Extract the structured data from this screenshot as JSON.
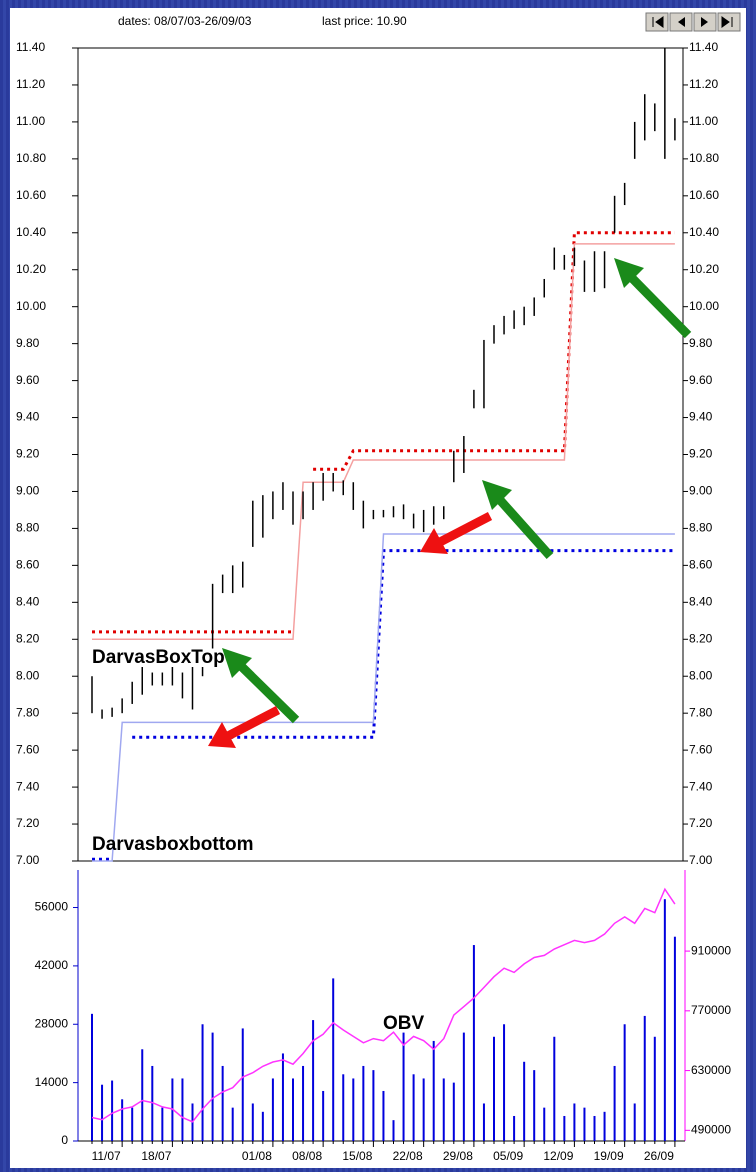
{
  "header": {
    "dates": "dates: 08/07/03-26/09/03",
    "last_price": "last price: 10.90"
  },
  "chart_data": [
    {
      "type": "ohlc",
      "ylim": [
        7.0,
        11.4
      ],
      "yticks": [
        {
          "value": 7.0,
          "label": "7.00"
        },
        {
          "value": 7.2,
          "label": "7.20"
        },
        {
          "value": 7.4,
          "label": "7.40"
        },
        {
          "value": 7.6,
          "label": "7.60"
        },
        {
          "value": 7.8,
          "label": "7.80"
        },
        {
          "value": 8.0,
          "label": "8.00"
        },
        {
          "value": 8.2,
          "label": "8.20"
        },
        {
          "value": 8.4,
          "label": "8.40"
        },
        {
          "value": 8.6,
          "label": "8.60"
        },
        {
          "value": 8.8,
          "label": "8.80"
        },
        {
          "value": 9.0,
          "label": "9.00"
        },
        {
          "value": 9.2,
          "label": "9.20"
        },
        {
          "value": 9.4,
          "label": "9.40"
        },
        {
          "value": 9.6,
          "label": "9.60"
        },
        {
          "value": 9.8,
          "label": "9.80"
        },
        {
          "value": 10.0,
          "label": "10.00"
        },
        {
          "value": 10.2,
          "label": "10.20"
        },
        {
          "value": 10.4,
          "label": "10.40"
        },
        {
          "value": 10.6,
          "label": "10.60"
        },
        {
          "value": 10.8,
          "label": "10.80"
        },
        {
          "value": 11.0,
          "label": "11.00"
        },
        {
          "value": 11.2,
          "label": "11.20"
        },
        {
          "value": 11.4,
          "label": "11.40"
        }
      ],
      "bar_color": "#000000",
      "high": [
        8.0,
        7.82,
        7.83,
        7.88,
        7.97,
        8.05,
        8.02,
        8.02,
        8.05,
        8.02,
        8.05,
        8.05,
        8.5,
        8.55,
        8.6,
        8.62,
        8.95,
        8.98,
        9.0,
        9.05,
        9.0,
        9.0,
        9.05,
        9.1,
        9.1,
        9.06,
        9.05,
        8.95,
        8.9,
        8.9,
        8.92,
        8.93,
        8.88,
        8.9,
        8.92,
        8.92,
        9.22,
        9.3,
        9.55,
        9.82,
        9.9,
        9.95,
        9.98,
        10.0,
        10.05,
        10.15,
        10.32,
        10.28,
        10.32,
        10.25,
        10.3,
        10.3,
        10.6,
        10.67,
        11.0,
        11.15,
        11.1,
        11.4,
        11.02
      ],
      "low": [
        7.8,
        7.77,
        7.78,
        7.8,
        7.85,
        7.9,
        7.95,
        7.95,
        7.95,
        7.88,
        7.82,
        8.0,
        8.15,
        8.45,
        8.45,
        8.48,
        8.7,
        8.75,
        8.85,
        8.9,
        8.82,
        8.85,
        8.9,
        8.95,
        9.0,
        8.98,
        8.9,
        8.8,
        8.85,
        8.86,
        8.86,
        8.85,
        8.8,
        8.78,
        8.82,
        8.85,
        9.05,
        9.1,
        9.45,
        9.45,
        9.8,
        9.85,
        9.88,
        9.9,
        9.95,
        10.05,
        10.2,
        10.2,
        10.22,
        10.08,
        10.08,
        10.1,
        10.4,
        10.55,
        10.8,
        10.9,
        10.95,
        10.8,
        10.9
      ],
      "series": [
        {
          "name": "DarvasBoxTop",
          "color": "#f4a0a0",
          "values": [
            8.2,
            8.2,
            8.2,
            8.2,
            8.2,
            8.2,
            8.2,
            8.2,
            8.2,
            8.2,
            8.2,
            8.2,
            8.2,
            8.2,
            8.2,
            8.2,
            8.2,
            8.2,
            8.2,
            8.2,
            8.2,
            9.05,
            9.05,
            9.05,
            9.05,
            9.05,
            9.17,
            9.17,
            9.17,
            9.17,
            9.17,
            9.17,
            9.17,
            9.17,
            9.17,
            9.17,
            9.17,
            9.17,
            9.17,
            9.17,
            9.17,
            9.17,
            9.17,
            9.17,
            9.17,
            9.17,
            9.17,
            9.17,
            10.34,
            10.34,
            10.34,
            10.34,
            10.34,
            10.34,
            10.34,
            10.34,
            10.34,
            10.34,
            10.34
          ]
        },
        {
          "name": "Darvasboxbottom",
          "color": "#a0a8f0",
          "values": [
            7.0,
            7.0,
            7.0,
            7.75,
            7.75,
            7.75,
            7.75,
            7.75,
            7.75,
            7.75,
            7.75,
            7.75,
            7.75,
            7.75,
            7.75,
            7.75,
            7.75,
            7.75,
            7.75,
            7.75,
            7.75,
            7.75,
            7.75,
            7.75,
            7.75,
            7.75,
            7.75,
            7.75,
            7.75,
            8.77,
            8.77,
            8.77,
            8.77,
            8.77,
            8.77,
            8.77,
            8.77,
            8.77,
            8.77,
            8.77,
            8.77,
            8.77,
            8.77,
            8.77,
            8.77,
            8.77,
            8.77,
            8.77,
            8.77,
            8.77,
            8.77,
            8.77,
            8.77,
            8.77,
            8.77,
            8.77,
            8.77,
            8.77,
            8.77
          ]
        }
      ],
      "dotted": [
        {
          "color": "#e00000",
          "values": [
            8.24,
            8.24,
            8.24,
            8.24,
            8.24,
            8.24,
            8.24,
            8.24,
            8.24,
            8.24,
            8.24,
            8.24,
            8.24,
            8.24,
            8.24,
            8.24,
            8.24,
            8.24,
            8.24,
            8.24,
            8.24,
            null,
            9.12,
            9.12,
            9.12,
            9.12,
            9.22,
            9.22,
            9.22,
            9.22,
            9.22,
            9.22,
            9.22,
            9.22,
            9.22,
            9.22,
            9.22,
            9.22,
            9.22,
            9.22,
            9.22,
            9.22,
            9.22,
            9.22,
            9.22,
            9.22,
            9.22,
            9.22,
            10.4,
            10.4,
            10.4,
            10.4,
            10.4,
            10.4,
            10.4,
            10.4,
            10.4,
            10.4,
            10.4
          ]
        },
        {
          "color": "#0000e0",
          "values": [
            7.01,
            7.01,
            7.01,
            null,
            7.67,
            7.67,
            7.67,
            7.67,
            7.67,
            7.67,
            7.67,
            7.67,
            7.67,
            7.67,
            7.67,
            7.67,
            7.67,
            7.67,
            7.67,
            7.67,
            7.67,
            7.67,
            7.67,
            7.67,
            7.67,
            7.67,
            7.67,
            7.67,
            7.67,
            8.68,
            8.68,
            8.68,
            8.68,
            8.68,
            8.68,
            8.68,
            8.68,
            8.68,
            8.68,
            8.68,
            8.68,
            8.68,
            8.68,
            8.68,
            8.68,
            8.68,
            8.68,
            8.68,
            8.68,
            8.68,
            8.68,
            8.68,
            8.68,
            8.68,
            8.68,
            8.68,
            8.68,
            8.68,
            8.68
          ]
        }
      ]
    },
    {
      "type": "bar",
      "categories": [
        null,
        null,
        null,
        "11/07",
        null,
        null,
        null,
        null,
        "18/07",
        null,
        null,
        null,
        null,
        null,
        null,
        null,
        null,
        null,
        "01/08",
        null,
        null,
        null,
        null,
        "08/08",
        null,
        null,
        null,
        null,
        "15/08",
        null,
        null,
        null,
        null,
        "22/08",
        null,
        null,
        null,
        null,
        "29/08",
        null,
        null,
        null,
        null,
        "05/09",
        null,
        null,
        null,
        null,
        "12/09",
        null,
        null,
        null,
        null,
        "19/09",
        null,
        null,
        null,
        null,
        "26/09"
      ],
      "ylim": [
        0,
        65000
      ],
      "yticks": [
        0,
        14000,
        28000,
        42000,
        56000
      ],
      "y2lim": [
        465000,
        1100000
      ],
      "y2ticks": [
        490000,
        630000,
        770000,
        910000
      ],
      "series": [
        {
          "color": "#0000dd",
          "values": [
            30500,
            13500,
            14500,
            10000,
            8000,
            22000,
            18000,
            8000,
            15000,
            15000,
            9000,
            28000,
            26000,
            18000,
            8000,
            27000,
            9000,
            7000,
            15000,
            21000,
            15000,
            18000,
            29000,
            12000,
            39000,
            16000,
            15000,
            18000,
            17000,
            12000,
            5000,
            26000,
            16000,
            15000,
            24000,
            15000,
            14000,
            26000,
            47000,
            9000,
            25000,
            28000,
            6000,
            19000,
            17000,
            8000,
            25000,
            6000,
            9000,
            8000,
            6000,
            7000,
            18000,
            28000,
            9000,
            30000,
            25000,
            58000,
            49000
          ]
        },
        {
          "name": "OBV",
          "color": "#ff33ff",
          "axis": "y2",
          "values": [
            520000,
            515000,
            530000,
            540000,
            545000,
            560000,
            555000,
            545000,
            540000,
            520000,
            510000,
            540000,
            565000,
            580000,
            590000,
            615000,
            625000,
            640000,
            650000,
            655000,
            645000,
            670000,
            700000,
            715000,
            742000,
            725000,
            710000,
            695000,
            705000,
            700000,
            720000,
            690000,
            710000,
            700000,
            680000,
            705000,
            760000,
            780000,
            800000,
            825000,
            850000,
            870000,
            860000,
            880000,
            895000,
            900000,
            915000,
            925000,
            935000,
            930000,
            935000,
            950000,
            975000,
            990000,
            975000,
            1010000,
            1000000,
            1055000,
            1020000
          ]
        }
      ]
    }
  ]
}
